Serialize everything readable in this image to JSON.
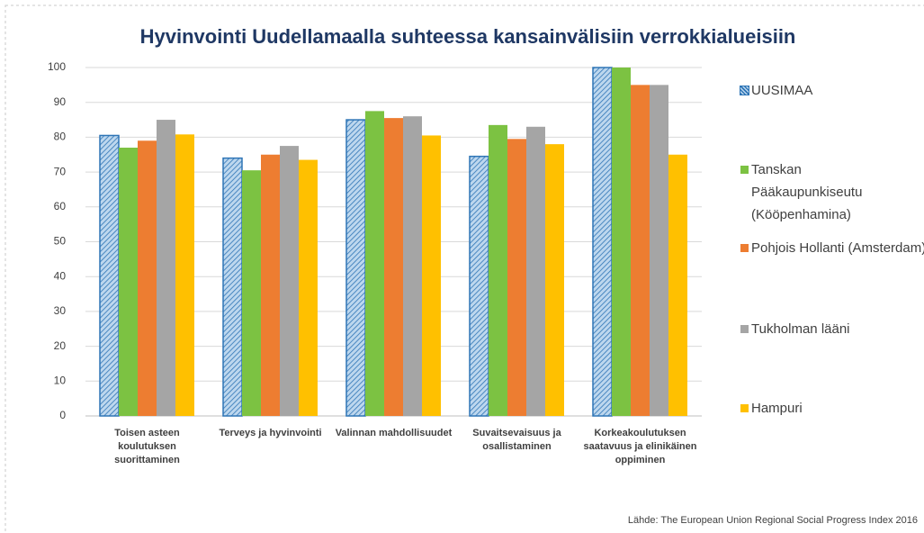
{
  "chart_data": {
    "type": "bar",
    "title": "Hyvinvointi Uudellamaalla suhteessa kansainvälisiin verrokkialueisiin",
    "categories": [
      "Toisen asteen koulutuksen suorittaminen",
      "Terveys ja hyvinvointi",
      "Valinnan mahdollisuudet",
      "Suvaitsevaisuus ja osallistaminen",
      "Korkeakoulutuksen saatavuus ja elinikäinen oppiminen"
    ],
    "series": [
      {
        "name": "UUSIMAA",
        "color": "#2e75b6",
        "pattern": "hatch",
        "values": [
          80.5,
          74,
          85,
          74.5,
          100
        ]
      },
      {
        "name": "Tanskan Pääkaupunkiseutu (Kööpenhamina)",
        "color": "#7cc242",
        "values": [
          77,
          70.5,
          87.5,
          83.5,
          100
        ]
      },
      {
        "name": "Pohjois Hollanti (Amsterdam)",
        "color": "#ed7d31",
        "values": [
          79,
          75,
          85.5,
          79.5,
          95
        ]
      },
      {
        "name": "Tukholman lääni",
        "color": "#a5a5a5",
        "values": [
          85,
          77.5,
          86,
          83,
          95
        ]
      },
      {
        "name": "Hampuri",
        "color": "#ffc000",
        "values": [
          80.8,
          73.5,
          80.5,
          78,
          75
        ]
      }
    ],
    "ylim": [
      0,
      100
    ],
    "yticks": [
      0,
      10,
      20,
      30,
      40,
      50,
      60,
      70,
      80,
      90,
      100
    ],
    "grid": true,
    "legend": "right",
    "source": "Lähde:  The European Union Regional Social Progress Index 2016"
  }
}
